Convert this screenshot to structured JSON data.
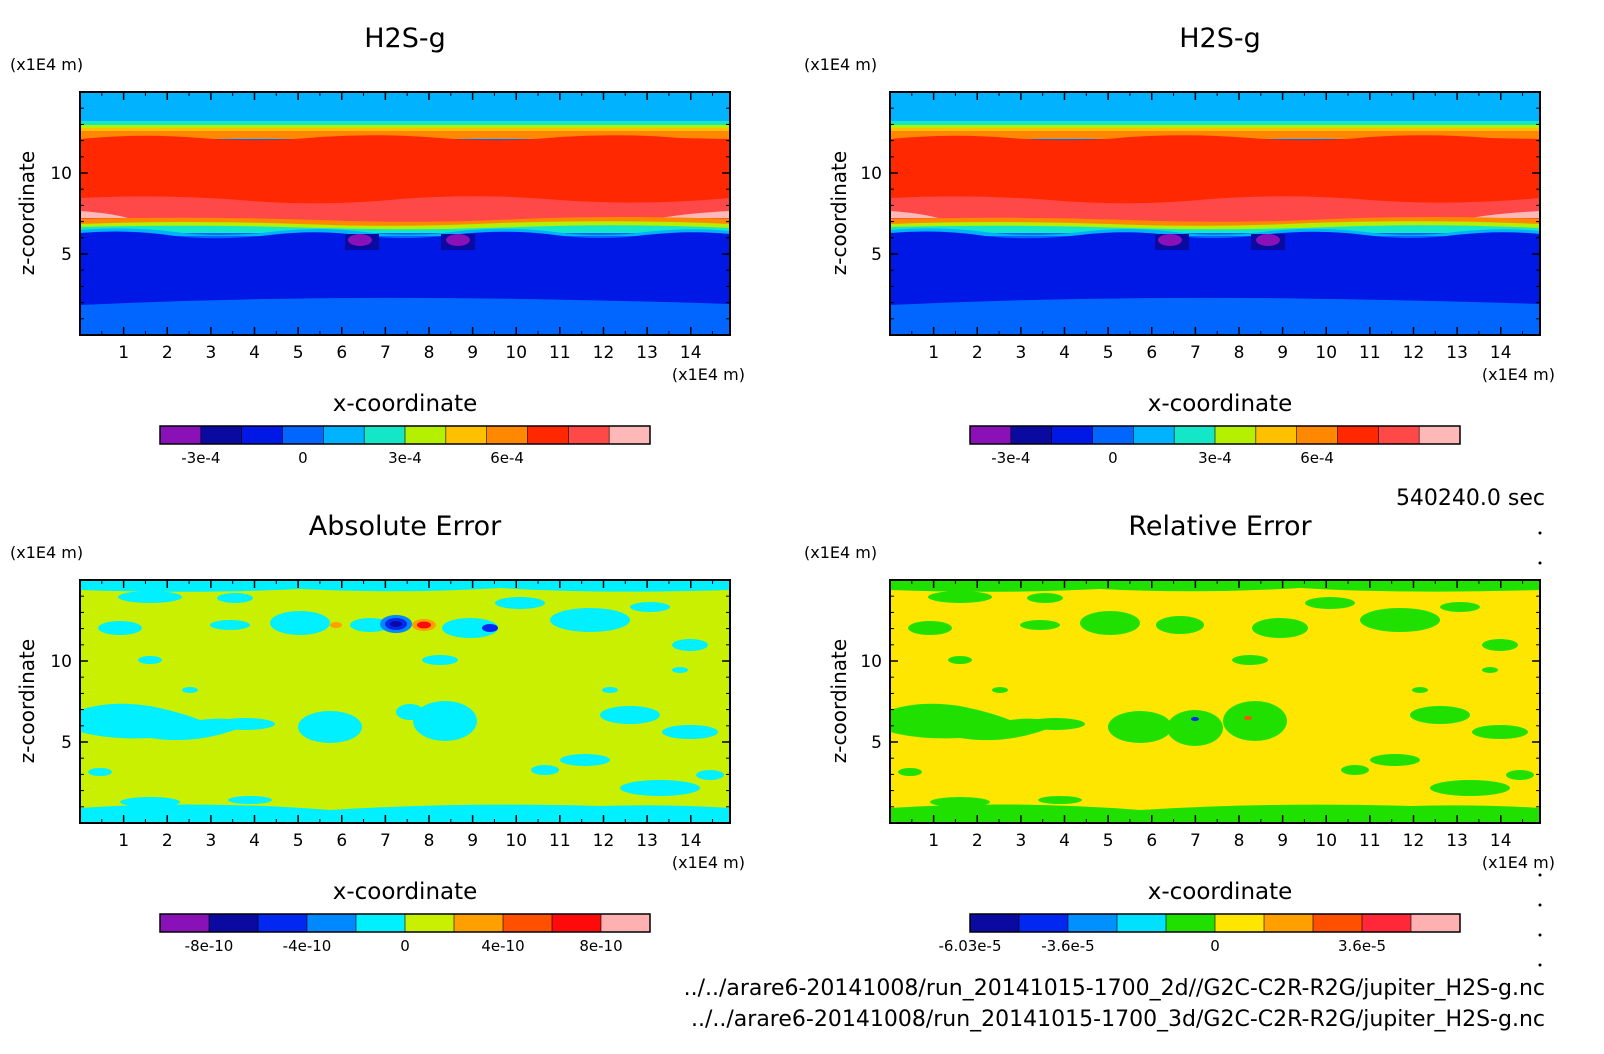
{
  "time_label": "540240.0 sec",
  "file_paths": [
    "../../arare6-20141008/run_20141015-1700_2d//G2C-C2R-R2G/jupiter_H2S-g.nc",
    "../../arare6-20141008/run_20141015-1700_3d/G2C-C2R-R2G/jupiter_H2S-g.nc"
  ],
  "chart_data": [
    {
      "type": "heatmap",
      "title": "H2S-g",
      "xlabel": "x-coordinate",
      "ylabel": "z-coordinate",
      "x_unit": "(x1E4 m)",
      "y_unit": "(x1E4 m)",
      "xlim": [
        0,
        14.9
      ],
      "ylim": [
        0,
        15
      ],
      "x_ticks": [
        "1",
        "2",
        "3",
        "4",
        "5",
        "6",
        "7",
        "8",
        "9",
        "10",
        "11",
        "12",
        "13",
        "14"
      ],
      "y_ticks": [
        "5",
        "10"
      ],
      "colorbar": {
        "colors": [
          "#8a10b8",
          "#0a0aa0",
          "#0018e6",
          "#0066ff",
          "#00b2ff",
          "#14e6c8",
          "#b4f000",
          "#ffc000",
          "#ff8800",
          "#ff2800",
          "#ff4848",
          "#ffb8b8"
        ],
        "labels": [
          "-3e-4",
          "0",
          "3e-4",
          "6e-4"
        ],
        "label_bins": [
          1,
          3.5,
          6,
          8.5
        ]
      }
    },
    {
      "type": "heatmap",
      "title": "H2S-g",
      "xlabel": "x-coordinate",
      "ylabel": "z-coordinate",
      "x_unit": "(x1E4 m)",
      "y_unit": "(x1E4 m)",
      "xlim": [
        0,
        14.9
      ],
      "ylim": [
        0,
        15
      ],
      "x_ticks": [
        "1",
        "2",
        "3",
        "4",
        "5",
        "6",
        "7",
        "8",
        "9",
        "10",
        "11",
        "12",
        "13",
        "14"
      ],
      "y_ticks": [
        "5",
        "10"
      ],
      "colorbar": {
        "colors": [
          "#8a10b8",
          "#0a0aa0",
          "#0018e6",
          "#0066ff",
          "#00b2ff",
          "#14e6c8",
          "#b4f000",
          "#ffc000",
          "#ff8800",
          "#ff2800",
          "#ff4848",
          "#ffb8b8"
        ],
        "labels": [
          "-3e-4",
          "0",
          "3e-4",
          "6e-4"
        ],
        "label_bins": [
          1,
          3.5,
          6,
          8.5
        ]
      }
    },
    {
      "type": "heatmap",
      "title": "Absolute Error",
      "xlabel": "x-coordinate",
      "ylabel": "z-coordinate",
      "x_unit": "(x1E4 m)",
      "y_unit": "(x1E4 m)",
      "xlim": [
        0,
        14.9
      ],
      "ylim": [
        0,
        15
      ],
      "x_ticks": [
        "1",
        "2",
        "3",
        "4",
        "5",
        "6",
        "7",
        "8",
        "9",
        "10",
        "11",
        "12",
        "13",
        "14"
      ],
      "y_ticks": [
        "5",
        "10"
      ],
      "colorbar": {
        "colors": [
          "#8a10b8",
          "#0a0aa0",
          "#0028f0",
          "#0088ff",
          "#00f0ff",
          "#c8f000",
          "#ffa000",
          "#ff5000",
          "#ff0a0a",
          "#ffb0b0"
        ],
        "labels": [
          "-8e-10",
          "-4e-10",
          "0",
          "4e-10",
          "8e-10"
        ],
        "label_bins": [
          1,
          3,
          5,
          7,
          9
        ]
      }
    },
    {
      "type": "heatmap",
      "title": "Relative Error",
      "xlabel": "x-coordinate",
      "ylabel": "z-coordinate",
      "x_unit": "(x1E4 m)",
      "y_unit": "(x1E4 m)",
      "xlim": [
        0,
        14.9
      ],
      "ylim": [
        0,
        15
      ],
      "x_ticks": [
        "1",
        "2",
        "3",
        "4",
        "5",
        "6",
        "7",
        "8",
        "9",
        "10",
        "11",
        "12",
        "13",
        "14"
      ],
      "y_ticks": [
        "5",
        "10"
      ],
      "colorbar": {
        "colors": [
          "#0a0aa0",
          "#0028f0",
          "#0090ff",
          "#00e0ff",
          "#20e000",
          "#ffe600",
          "#ffa000",
          "#ff5000",
          "#ff2838",
          "#ffb0b0"
        ],
        "labels": [
          "-6.03e-5",
          "-3.6e-5",
          "0",
          "3.6e-5"
        ],
        "label_bins": [
          0,
          2,
          5,
          8
        ]
      }
    }
  ]
}
